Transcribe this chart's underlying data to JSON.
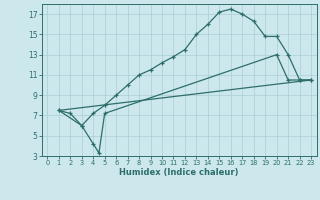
{
  "xlabel": "Humidex (Indice chaleur)",
  "bg_color": "#cce8ec",
  "grid_color": "#aacdd4",
  "line_color": "#2e6e6a",
  "xlim": [
    -0.5,
    23.5
  ],
  "ylim": [
    3,
    18
  ],
  "xticks": [
    0,
    1,
    2,
    3,
    4,
    5,
    6,
    7,
    8,
    9,
    10,
    11,
    12,
    13,
    14,
    15,
    16,
    17,
    18,
    19,
    20,
    21,
    22,
    23
  ],
  "yticks": [
    3,
    5,
    7,
    9,
    11,
    13,
    15,
    17
  ],
  "line1_x": [
    1,
    2,
    3,
    4,
    5,
    6,
    7,
    8,
    9,
    10,
    11,
    12,
    13,
    14,
    15,
    16,
    17,
    18,
    19,
    20,
    21,
    22,
    23
  ],
  "line1_y": [
    7.5,
    7.2,
    6.0,
    7.2,
    8.0,
    9.0,
    10.0,
    11.0,
    11.5,
    12.2,
    12.8,
    13.5,
    15.0,
    16.0,
    17.2,
    17.5,
    17.0,
    16.3,
    14.8,
    14.8,
    13.0,
    10.5,
    10.5
  ],
  "line2_x": [
    1,
    3,
    4,
    4.5,
    5,
    20,
    21,
    22,
    23
  ],
  "line2_y": [
    7.5,
    6.0,
    4.2,
    3.3,
    7.2,
    13.0,
    10.5,
    10.5,
    10.5
  ],
  "line3_x": [
    1,
    23
  ],
  "line3_y": [
    7.5,
    10.5
  ]
}
